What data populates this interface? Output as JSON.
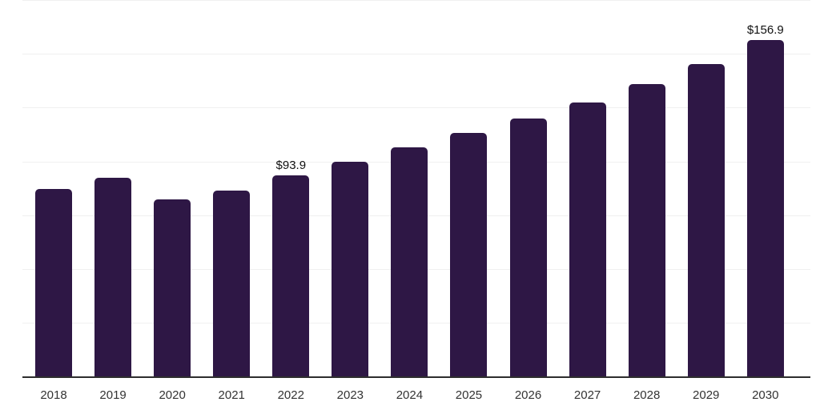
{
  "chart_data": {
    "type": "bar",
    "title": "",
    "xlabel": "",
    "ylabel": "",
    "categories": [
      "2018",
      "2019",
      "2020",
      "2021",
      "2022",
      "2023",
      "2024",
      "2025",
      "2026",
      "2027",
      "2028",
      "2029",
      "2030"
    ],
    "values": [
      87.6,
      92.8,
      82.7,
      86.8,
      93.9,
      100.2,
      106.9,
      113.6,
      120.3,
      127.8,
      136.4,
      145.7,
      156.9
    ],
    "data_labels": {
      "2022": "$93.9",
      "2030": "$156.9"
    },
    "value_prefix": "$",
    "ylim": [
      0,
      175
    ],
    "gridline_interval": 25,
    "grid": true,
    "legend": false,
    "colors": {
      "bar": "#2e1745",
      "background": "#ffffff",
      "gridline": "#f0f0f0",
      "axis_line": "#2e2e2e",
      "value_label": "#111111",
      "tick_label": "#333333"
    }
  }
}
